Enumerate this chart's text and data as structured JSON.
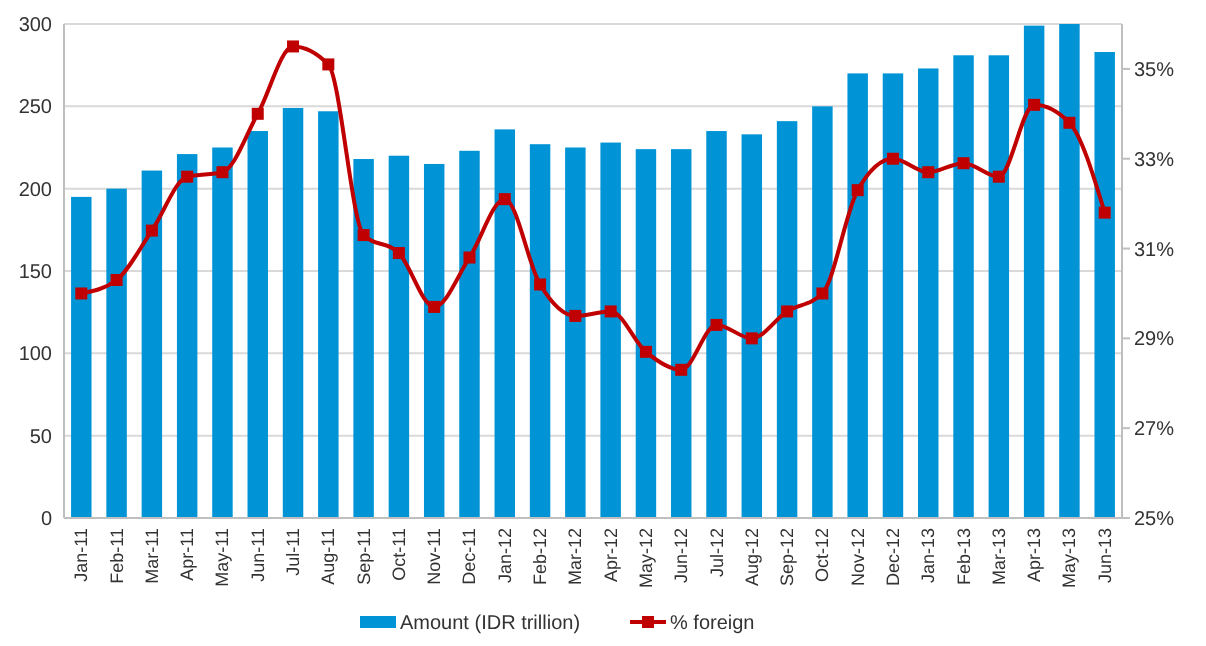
{
  "chart_data": {
    "type": "bar",
    "categories": [
      "Jan-11",
      "Feb-11",
      "Mar-11",
      "Apr-11",
      "May-11",
      "Jun-11",
      "Jul-11",
      "Aug-11",
      "Sep-11",
      "Oct-11",
      "Nov-11",
      "Dec-11",
      "Jan-12",
      "Feb-12",
      "Mar-12",
      "Apr-12",
      "May-12",
      "Jun-12",
      "Jul-12",
      "Aug-12",
      "Sep-12",
      "Oct-12",
      "Nov-12",
      "Dec-12",
      "Jan-13",
      "Feb-13",
      "Mar-13",
      "Apr-13",
      "May-13",
      "Jun-13"
    ],
    "series": [
      {
        "name": "Amount (IDR trillion)",
        "color": "#0094d6",
        "values": [
          195,
          200,
          211,
          221,
          225,
          235,
          249,
          247,
          218,
          220,
          215,
          223,
          236,
          227,
          225,
          228,
          224,
          224,
          235,
          233,
          241,
          250,
          270,
          270,
          273,
          281,
          281,
          299,
          300,
          283
        ]
      },
      {
        "name": "% foreign",
        "type": "line",
        "axis": "y2",
        "color": "#c00000",
        "marker": "square",
        "values": [
          30.0,
          30.3,
          31.4,
          32.6,
          32.7,
          34.0,
          35.5,
          35.1,
          31.3,
          30.9,
          29.7,
          30.8,
          32.1,
          30.2,
          29.5,
          29.6,
          28.7,
          28.3,
          29.3,
          29.0,
          29.6,
          30.0,
          32.3,
          33.0,
          32.7,
          32.9,
          32.6,
          34.2,
          33.8,
          31.8
        ]
      }
    ],
    "ylim": [
      0,
      300
    ],
    "yticks": [
      0,
      50,
      100,
      150,
      200,
      250,
      300
    ],
    "y2lim": [
      25,
      36
    ],
    "y2ticks": [
      {
        "value": 25,
        "label": "25%"
      },
      {
        "value": 27,
        "label": "27%"
      },
      {
        "value": 29,
        "label": "29%"
      },
      {
        "value": 31,
        "label": "31%"
      },
      {
        "value": 33,
        "label": "33%"
      },
      {
        "value": 35,
        "label": "35%"
      }
    ],
    "grid": "y",
    "legend": "bottom"
  }
}
